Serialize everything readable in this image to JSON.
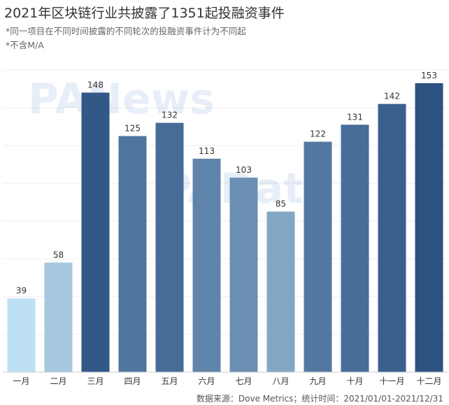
{
  "chart_data": {
    "type": "bar",
    "title": "2021年区块链行业共披露了1351起投融资事件",
    "notes": [
      "*同一项目在不同时间披露的不同轮次的投融资事件计为不同起",
      "*不含M/A"
    ],
    "categories": [
      "一月",
      "二月",
      "三月",
      "四月",
      "五月",
      "六月",
      "七月",
      "八月",
      "九月",
      "十月",
      "十一月",
      "十二月"
    ],
    "values": [
      39,
      58,
      148,
      125,
      132,
      113,
      103,
      85,
      122,
      131,
      142,
      153
    ],
    "ylim": [
      0,
      160
    ],
    "grid": true,
    "color_scale": [
      "#bde0f2",
      "#2c5282"
    ]
  },
  "source": "数据来源：Dove Metrics；统计时间：2021/01/01-2021/12/31",
  "watermarks": [
    "PANews",
    "PAData"
  ]
}
